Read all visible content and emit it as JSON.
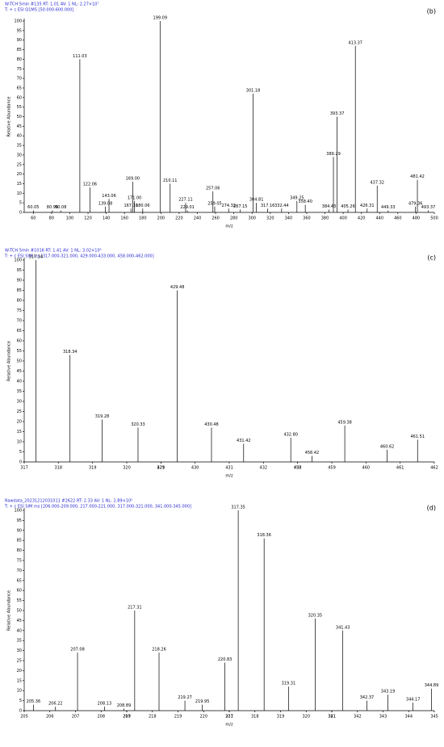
{
  "chart_data": [
    {
      "type": "stem",
      "title": "W-TCH 5min #135  RT: 1.01  AV: 1  NL: 2.27×10⁷",
      "subtitle": "T: + c ESI Q1MS [50.000-600.000]",
      "panel_label": "(b)",
      "xlabel": "m/z",
      "ylabel": "Relative Abundance",
      "color": "#000000",
      "ylim": [
        0,
        100
      ],
      "yticks": [
        0,
        5,
        10,
        15,
        20,
        25,
        30,
        35,
        40,
        45,
        50,
        55,
        60,
        65,
        70,
        75,
        80,
        85,
        90,
        95,
        100
      ],
      "segments": [
        {
          "xlim": [
            50,
            500
          ],
          "xticks": [
            60,
            80,
            100,
            120,
            140,
            160,
            180,
            200,
            220,
            240,
            260,
            280,
            300,
            320,
            340,
            360,
            380,
            400,
            420,
            440,
            460,
            480,
            500
          ],
          "x": [
            60.05,
            80.95,
            90.08,
            111.03,
            122.06,
            139.08,
            143.06,
            167.1,
            169,
            171,
            180.06,
            199.09,
            210.11,
            227.11,
            229.01,
            257.06,
            259.05,
            274.32,
            287.15,
            301.18,
            304.81,
            317.16,
            332.44,
            349.25,
            358.4,
            384.43,
            389.29,
            393.37,
            405.26,
            413.37,
            426.31,
            437.32,
            449.33,
            479.36,
            481.42,
            493.37
          ],
          "x_labels": [
            "60.05",
            "80.95",
            "90.08",
            "111.03",
            "122.06",
            "139.08",
            "143.06",
            "167.10",
            "169.00",
            "171.00",
            "180.06",
            "199.09",
            "210.11",
            "227.11",
            "229.01",
            "257.06",
            "259.05",
            "274.32",
            "287.15",
            "301.18",
            "304.81",
            "317.16",
            "332.44",
            "349.25",
            "358.40",
            "384.43",
            "389.29",
            "393.37",
            "405.26",
            "413.37",
            "426.31",
            "437.32",
            "449.33",
            "479.36",
            "481.42",
            "493.37"
          ],
          "values": [
            1,
            1,
            1,
            80,
            13,
            3,
            7,
            2,
            16,
            6,
            2,
            100,
            15,
            5,
            1,
            11,
            3,
            2,
            1.5,
            62,
            5,
            2,
            2,
            6,
            4,
            1.5,
            29,
            50,
            1.5,
            87,
            2,
            14,
            1,
            3,
            17,
            1
          ]
        }
      ]
    },
    {
      "type": "stem",
      "title": "W-TCH 5min #1016  RT: 1.41  AV: 1  NL: 3.02×10⁵",
      "subtitle": "T: + c ESI SIM ms [317.000-321.000, 429.000-433.000, 458.000-462.000]",
      "panel_label": "(c)",
      "xlabel": "m/z",
      "ylabel": "Relative Abundance",
      "color": "#000000",
      "ylim": [
        0,
        100
      ],
      "yticks": [
        0,
        5,
        10,
        15,
        20,
        25,
        30,
        35,
        40,
        45,
        50,
        55,
        60,
        65,
        70,
        75,
        80,
        85,
        90,
        95,
        100
      ],
      "segments": [
        {
          "xlim": [
            317,
            321
          ],
          "xticks": [
            317,
            318,
            319,
            320,
            321
          ],
          "x": [
            317.34,
            318.34,
            319.28,
            320.33
          ],
          "x_labels": [
            "317.34",
            "318.34",
            "319.28",
            "320.33"
          ],
          "values": [
            100,
            53,
            21,
            17
          ]
        },
        {
          "xlim": [
            429,
            433
          ],
          "xticks": [
            429,
            430,
            431,
            432,
            433
          ],
          "x": [
            429.48,
            430.48,
            431.42,
            432.8
          ],
          "x_labels": [
            "429.48",
            "430.48",
            "431.42",
            "432.80"
          ],
          "values": [
            85,
            17,
            9,
            12
          ]
        },
        {
          "xlim": [
            458,
            462
          ],
          "xticks": [
            458,
            459,
            460,
            461,
            462
          ],
          "x": [
            458.42,
            459.38,
            460.62,
            461.51
          ],
          "x_labels": [
            "458.42",
            "459.38",
            "460.62",
            "461.51"
          ],
          "values": [
            3,
            18,
            6,
            11
          ]
        }
      ]
    },
    {
      "type": "stem",
      "title": "Rawdata_20231212031011 #2622  RT: 2.33  AV: 1  NL: 2.89×10⁵",
      "subtitle": "T: + c ESI SIM ms [206.000-209.000, 217.000-221.000, 317.000-321.000, 341.000-345.000]",
      "panel_label": "(d)",
      "xlabel": "m/z",
      "ylabel": "Relative Abundance",
      "color": "#000000",
      "ylim": [
        0,
        100
      ],
      "yticks": [
        0,
        5,
        10,
        15,
        20,
        25,
        30,
        35,
        40,
        45,
        50,
        55,
        60,
        65,
        70,
        75,
        80,
        85,
        90,
        95,
        100
      ],
      "segments": [
        {
          "xlim": [
            205,
            209
          ],
          "xticks": [
            205,
            206,
            207,
            208,
            209
          ],
          "x": [
            205.36,
            206.22,
            207.08,
            208.13,
            208.89
          ],
          "x_labels": [
            "205.36",
            "206.22",
            "207.08",
            "208.13",
            "208.89"
          ],
          "values": [
            3,
            2,
            29,
            2,
            1
          ]
        },
        {
          "xlim": [
            217,
            221
          ],
          "xticks": [
            217,
            218,
            219,
            220,
            221
          ],
          "x": [
            217.31,
            218.26,
            219.27,
            219.95,
            220.83
          ],
          "x_labels": [
            "217.31",
            "218.26",
            "219.27",
            "219.95",
            "220.83"
          ],
          "values": [
            50,
            29,
            5,
            3,
            24
          ]
        },
        {
          "xlim": [
            317,
            321
          ],
          "xticks": [
            317,
            318,
            319,
            320,
            321
          ],
          "x": [
            317.35,
            318.36,
            319.31,
            320.35
          ],
          "x_labels": [
            "317.35",
            "318.36",
            "319.31",
            "320.35"
          ],
          "values": [
            100,
            86,
            12,
            46
          ]
        },
        {
          "xlim": [
            341,
            345
          ],
          "xticks": [
            341,
            342,
            343,
            344,
            345
          ],
          "x": [
            341.43,
            342.37,
            343.19,
            344.17,
            344.89
          ],
          "x_labels": [
            "341.43",
            "342.37",
            "343.19",
            "344.17",
            "344.89"
          ],
          "values": [
            40,
            5,
            8,
            4,
            11
          ]
        }
      ]
    }
  ]
}
